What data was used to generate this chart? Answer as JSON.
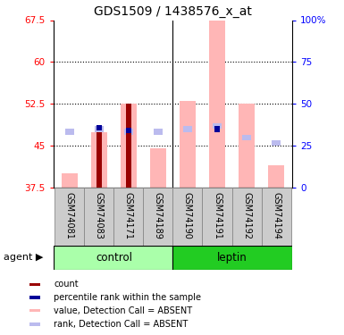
{
  "title": "GDS1509 / 1438576_x_at",
  "samples": [
    "GSM74081",
    "GSM74083",
    "GSM74171",
    "GSM74189",
    "GSM74190",
    "GSM74191",
    "GSM74192",
    "GSM74194"
  ],
  "ylim_left": [
    37.5,
    67.5
  ],
  "ylim_right": [
    0,
    100
  ],
  "yticks_left": [
    37.5,
    45.0,
    52.5,
    60.0,
    67.5
  ],
  "ytick_labels_left": [
    "37.5",
    "45",
    "52.5",
    "60",
    "67.5"
  ],
  "yticks_right": [
    0,
    25,
    50,
    75,
    100
  ],
  "ytick_labels_right": [
    "0",
    "25",
    "50",
    "75",
    "100%"
  ],
  "dotted_yticks": [
    45.0,
    52.5,
    60.0
  ],
  "value_absent": [
    40.0,
    47.5,
    52.5,
    44.5,
    53.0,
    67.5,
    52.5,
    41.5
  ],
  "rank_absent": [
    47.5,
    48.0,
    47.5,
    47.5,
    48.0,
    48.5,
    46.5,
    45.5
  ],
  "count_tops": [
    null,
    47.5,
    52.5,
    null,
    null,
    null,
    null,
    null
  ],
  "percentile_rank": [
    null,
    48.2,
    47.8,
    null,
    null,
    48.0,
    null,
    null
  ],
  "color_dark_red": "#990000",
  "color_blue": "#000099",
  "color_pink": "#FFB6B6",
  "color_lavender": "#BBBBEE",
  "control_color_light": "#AAFFAA",
  "control_color_dark": "#44DD44",
  "leptin_color": "#22CC22",
  "gray_col": "#CCCCCC",
  "legend_items": [
    {
      "color": "#990000",
      "label": "count"
    },
    {
      "color": "#000099",
      "label": "percentile rank within the sample"
    },
    {
      "color": "#FFB6B6",
      "label": "value, Detection Call = ABSENT"
    },
    {
      "color": "#BBBBEE",
      "label": "rank, Detection Call = ABSENT"
    }
  ]
}
